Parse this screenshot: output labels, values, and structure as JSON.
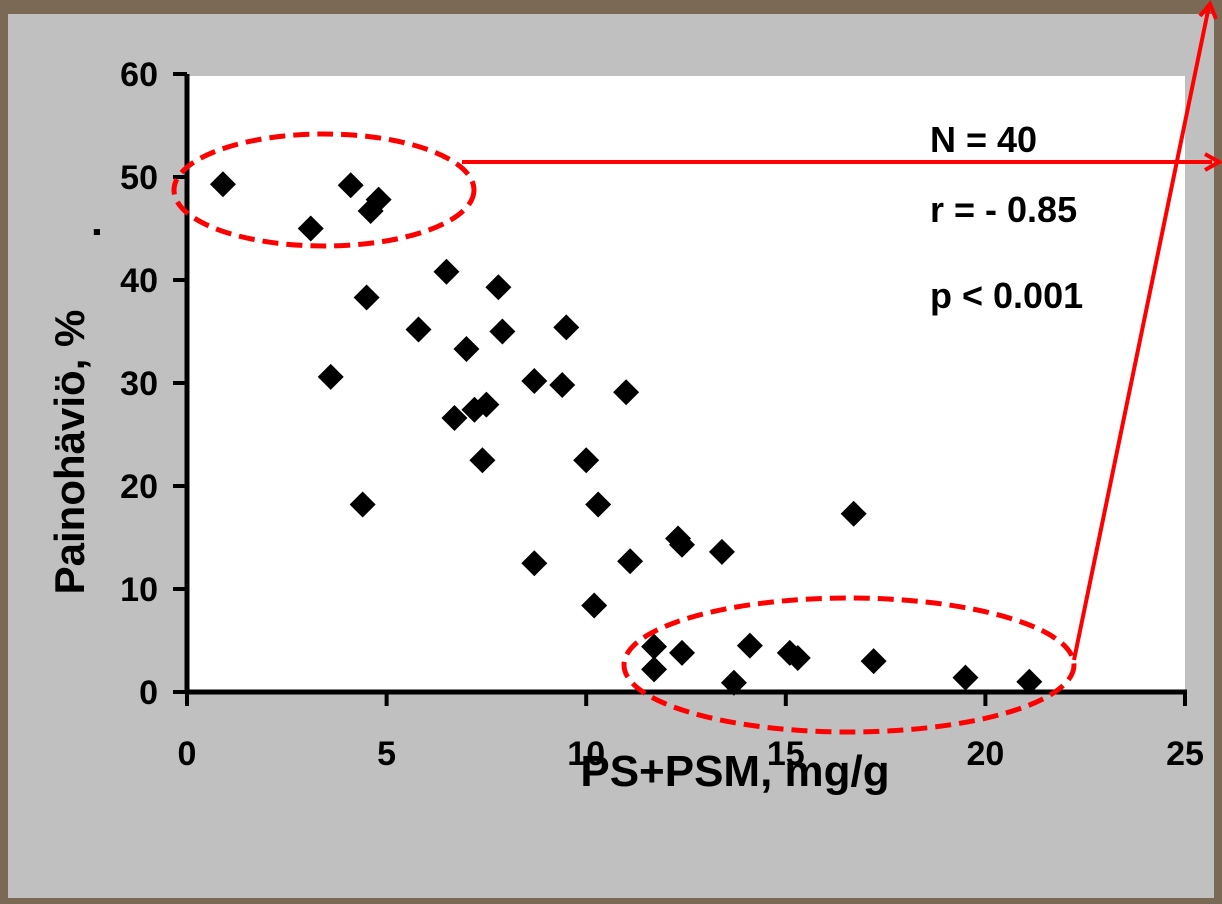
{
  "chart_data": {
    "type": "scatter",
    "title": "",
    "xlabel": "PS+PSM, mg/g",
    "ylabel": "Painohäviö, %",
    "ylabel_suffix": ".",
    "xlim": [
      0,
      25
    ],
    "ylim": [
      0,
      60
    ],
    "x_ticks": [
      "0",
      "5",
      "10",
      "15",
      "20",
      "25"
    ],
    "y_ticks": [
      "0",
      "10",
      "20",
      "30",
      "40",
      "50",
      "60"
    ],
    "grid": false,
    "marker": "diamond",
    "stats": {
      "n": "N = 40",
      "r": "r = - 0.85",
      "p": "p < 0.001"
    },
    "points": [
      {
        "x": 0.9,
        "y": 49.3
      },
      {
        "x": 3.1,
        "y": 45.0
      },
      {
        "x": 4.1,
        "y": 49.2
      },
      {
        "x": 4.8,
        "y": 47.8
      },
      {
        "x": 4.6,
        "y": 46.7
      },
      {
        "x": 6.5,
        "y": 40.8
      },
      {
        "x": 4.5,
        "y": 38.3
      },
      {
        "x": 7.8,
        "y": 39.3
      },
      {
        "x": 5.8,
        "y": 35.2
      },
      {
        "x": 7.9,
        "y": 35.0
      },
      {
        "x": 9.5,
        "y": 35.4
      },
      {
        "x": 7.0,
        "y": 33.3
      },
      {
        "x": 3.6,
        "y": 30.6
      },
      {
        "x": 8.7,
        "y": 30.2
      },
      {
        "x": 9.4,
        "y": 29.8
      },
      {
        "x": 11.0,
        "y": 29.1
      },
      {
        "x": 6.7,
        "y": 26.6
      },
      {
        "x": 7.2,
        "y": 27.4
      },
      {
        "x": 7.5,
        "y": 27.9
      },
      {
        "x": 7.4,
        "y": 22.5
      },
      {
        "x": 10.0,
        "y": 22.5
      },
      {
        "x": 4.4,
        "y": 18.2
      },
      {
        "x": 10.3,
        "y": 18.2
      },
      {
        "x": 16.7,
        "y": 17.3
      },
      {
        "x": 12.3,
        "y": 14.9
      },
      {
        "x": 12.4,
        "y": 14.3
      },
      {
        "x": 13.4,
        "y": 13.6
      },
      {
        "x": 8.7,
        "y": 12.5
      },
      {
        "x": 11.1,
        "y": 12.7
      },
      {
        "x": 10.2,
        "y": 8.4
      },
      {
        "x": 11.7,
        "y": 4.4
      },
      {
        "x": 11.7,
        "y": 2.2
      },
      {
        "x": 12.4,
        "y": 3.8
      },
      {
        "x": 14.1,
        "y": 4.5
      },
      {
        "x": 15.1,
        "y": 3.8
      },
      {
        "x": 15.3,
        "y": 3.3
      },
      {
        "x": 17.2,
        "y": 3.0
      },
      {
        "x": 13.7,
        "y": 0.9
      },
      {
        "x": 19.5,
        "y": 1.4
      },
      {
        "x": 21.1,
        "y": 1.0
      }
    ]
  },
  "colors": {
    "background": "#c0c0c0",
    "plot_area": "#ffffff",
    "marker": "#000000",
    "annotation": "#ff0000"
  }
}
